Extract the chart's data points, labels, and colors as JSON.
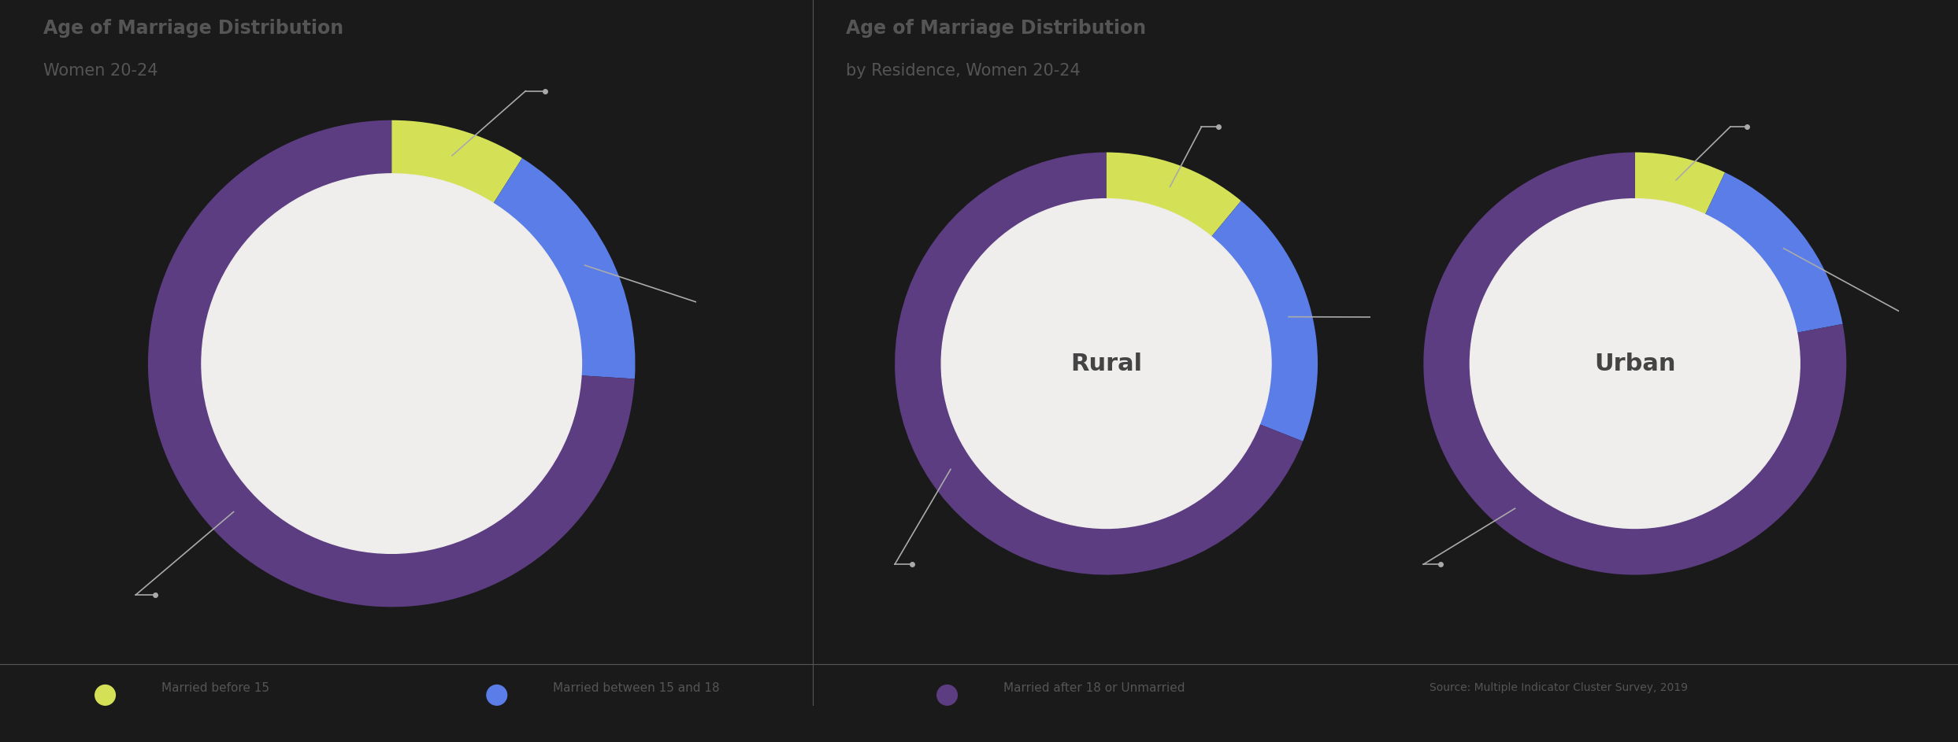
{
  "background_color": "#1a1a1a",
  "inner_hole_color": "#f0eeec",
  "text_color": "#555555",
  "title_fontsize": 17,
  "subtitle_fontsize": 15,
  "charts": [
    {
      "title": "Age of Marriage Distribution",
      "subtitle": "Women 20-24",
      "center_label": "",
      "values": [
        9,
        17,
        74
      ]
    },
    {
      "title": "Age of Marriage Distribution",
      "subtitle": "by Residence, Women 20-24",
      "center_label": "Rural",
      "values": [
        11,
        20,
        69
      ]
    },
    {
      "title": "",
      "subtitle": "",
      "center_label": "Urban",
      "values": [
        7,
        15,
        78
      ]
    }
  ],
  "slice_colors": [
    "#d4e157",
    "#5b7de8",
    "#5c3d82"
  ],
  "legend_labels": [
    "Married before 15",
    "Married between 15 and 18",
    "Married after 18 or Unmarried"
  ],
  "source_text": "Source: Multiple Indicator Cluster Survey, 2019",
  "donut_width": 0.22,
  "annotation_line_color": "#aaaaaa",
  "annotation_dot_color": "#aaaaaa",
  "center_label_color": "#444444",
  "divider_color": "#555555"
}
